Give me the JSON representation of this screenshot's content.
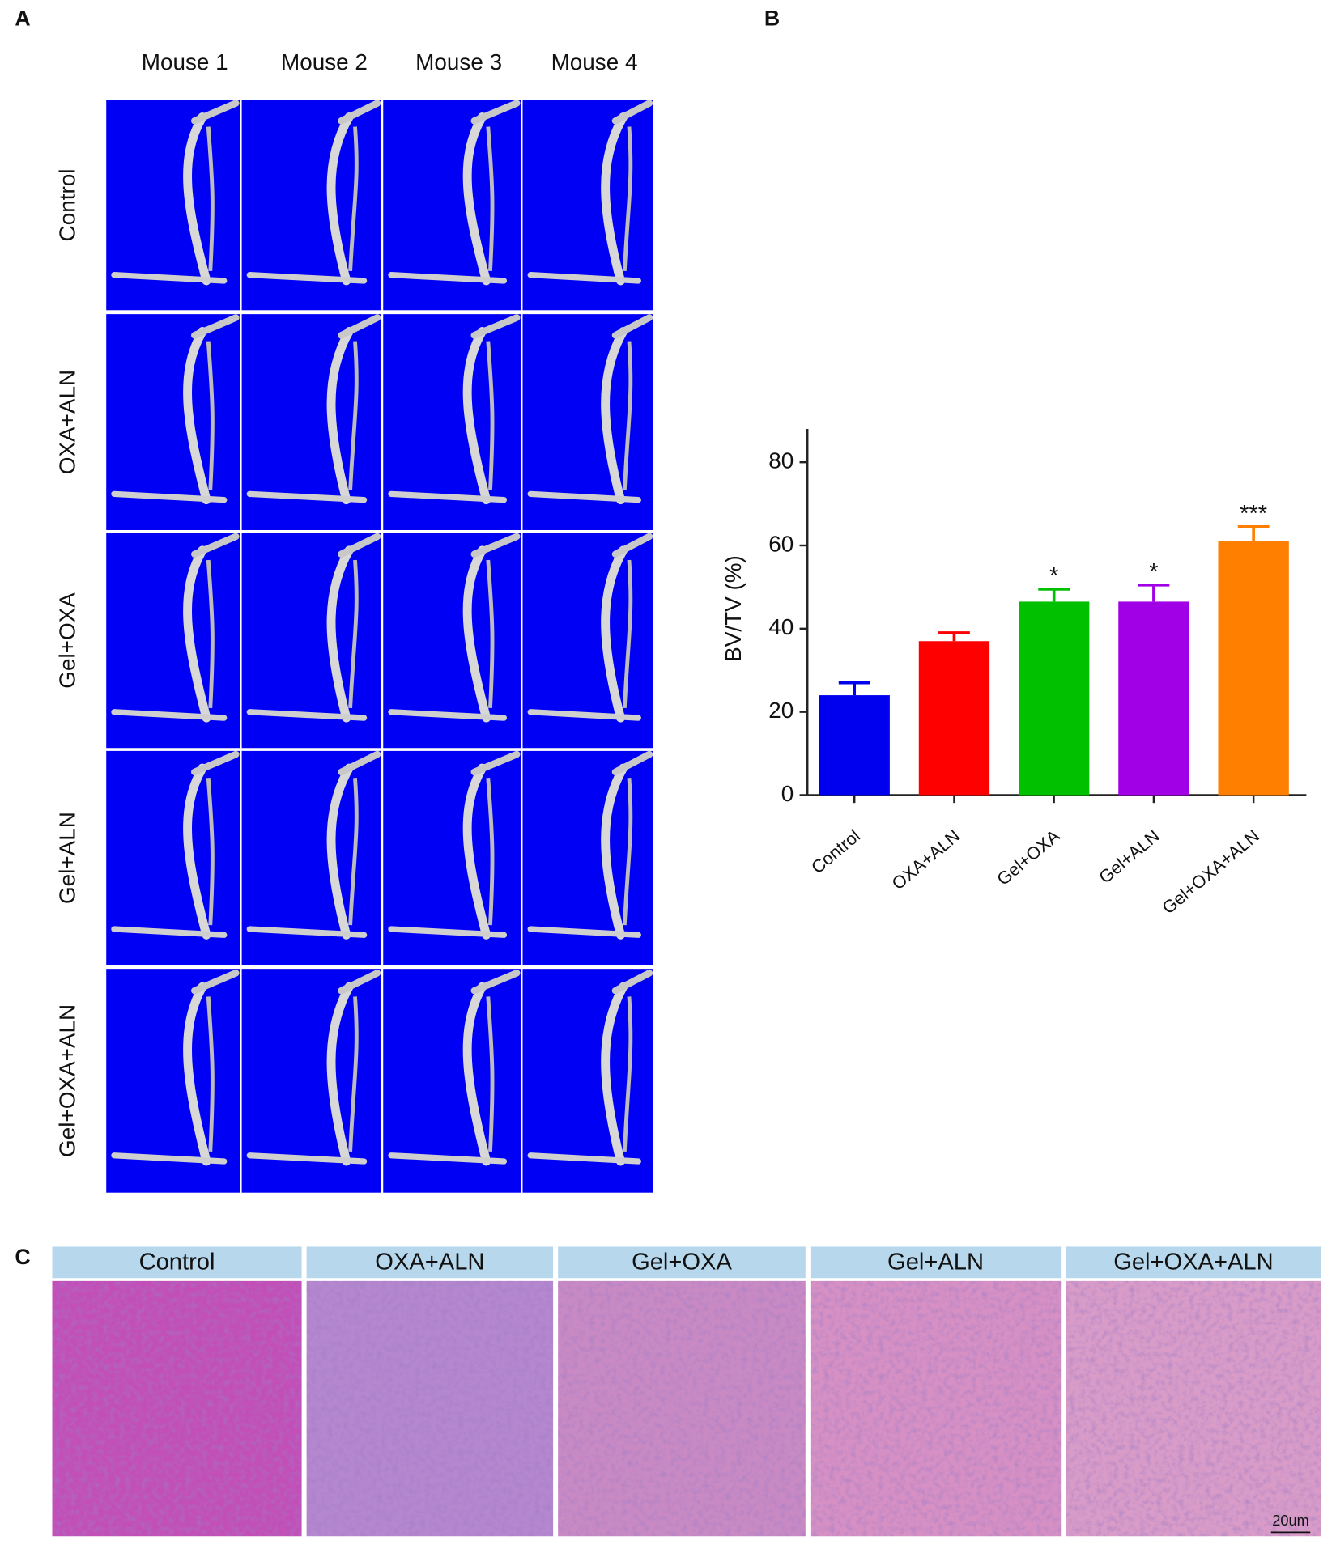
{
  "panel_labels": [
    "A",
    "B",
    "C"
  ],
  "panel_a": {
    "columns": [
      "Mouse 1",
      "Mouse 2",
      "Mouse 3",
      "Mouse 4"
    ],
    "rows": [
      "Control",
      "OXA+ALN",
      "Gel+OXA",
      "Gel+ALN",
      "Gel+OXA+ALN"
    ]
  },
  "chart_data": {
    "type": "bar",
    "y_label": "BV/TV (%)",
    "categories": [
      "Control",
      "OXA+ALN",
      "Gel+OXA",
      "Gel+ALN",
      "Gel+OXA+ALN"
    ],
    "values": [
      24,
      37,
      46.5,
      46.5,
      61
    ],
    "errors": [
      3,
      2,
      3,
      4,
      3.5
    ],
    "significance": [
      null,
      null,
      "*",
      "*",
      "***"
    ],
    "colors": [
      "#0000ee",
      "#ff0000",
      "#00c000",
      "#a100e6",
      "#ff7f00"
    ],
    "ylim": [
      0,
      88
    ],
    "yticks": [
      0,
      20,
      40,
      60,
      80
    ]
  },
  "panel_c": {
    "headers": [
      "Control",
      "OXA+ALN",
      "Gel+OXA",
      "Gel+ALN",
      "Gel+OXA+ALN"
    ],
    "scale_bar": "20um"
  }
}
